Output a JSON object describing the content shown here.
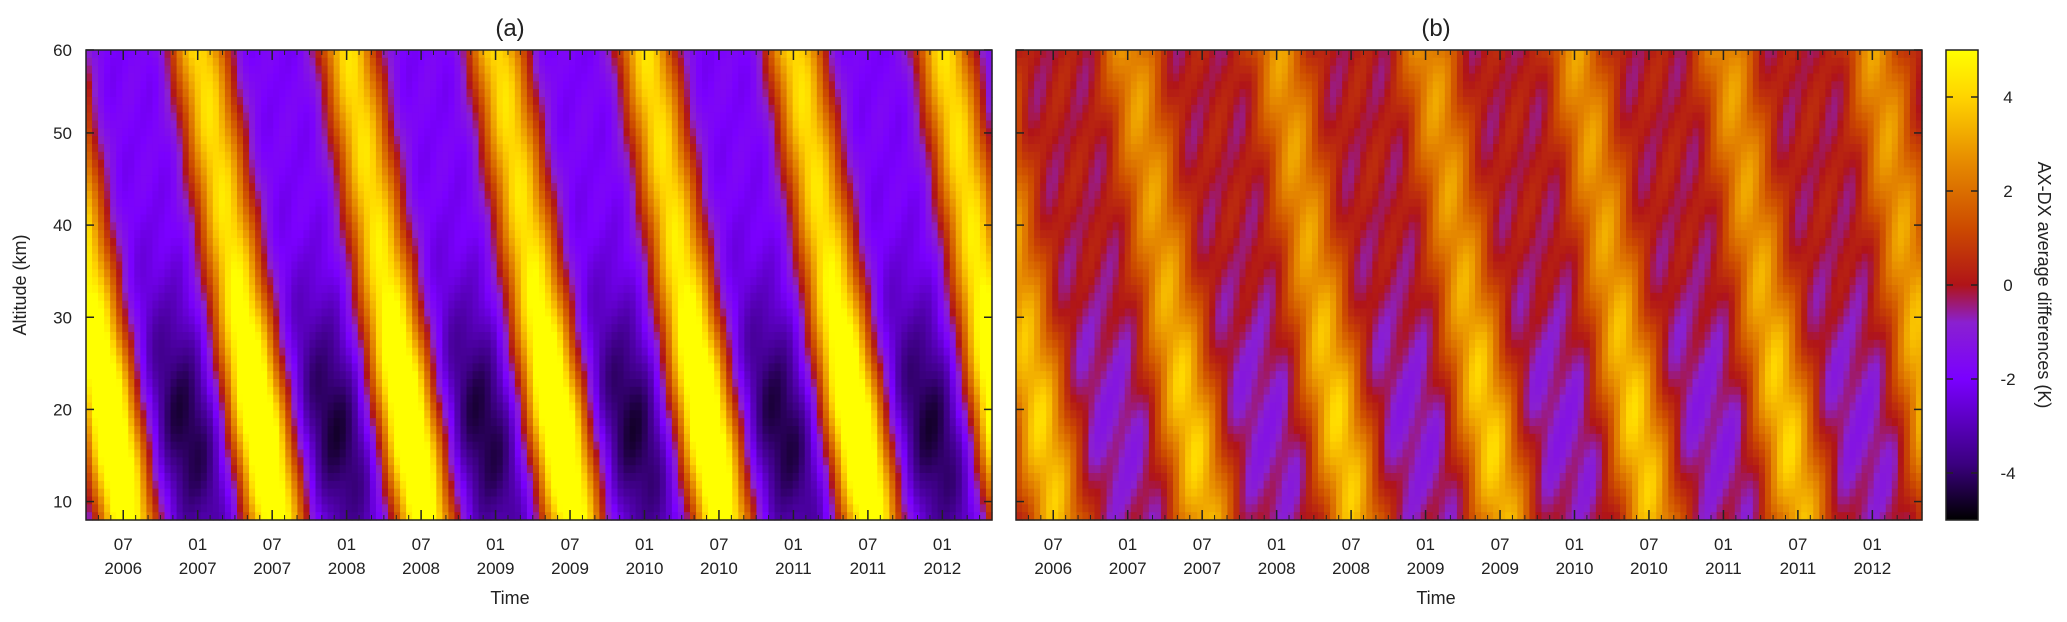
{
  "chart_data": [
    {
      "type": "heatmap",
      "title": "(a)",
      "xlabel": "Time",
      "ylabel": "Altitude (km)",
      "xlim": [
        "2006-04-01",
        "2012-05-01"
      ],
      "ylim": [
        8,
        59
      ],
      "y_ticks": [
        "10",
        "20",
        "30",
        "40",
        "50",
        "60"
      ],
      "x_ticks": [
        {
          "month": "07",
          "year": "2006"
        },
        {
          "month": "01",
          "year": "2007"
        },
        {
          "month": "07",
          "year": "2007"
        },
        {
          "month": "01",
          "year": "2008"
        },
        {
          "month": "07",
          "year": "2008"
        },
        {
          "month": "01",
          "year": "2009"
        },
        {
          "month": "07",
          "year": "2009"
        },
        {
          "month": "01",
          "year": "2010"
        },
        {
          "month": "07",
          "year": "2010"
        },
        {
          "month": "01",
          "year": "2011"
        },
        {
          "month": "07",
          "year": "2011"
        },
        {
          "month": "01",
          "year": "2012"
        }
      ],
      "pattern": {
        "annual_amplitude": 5.6,
        "semiannual_amplitude": 1.0,
        "phase_tilt_months_per_km": 0.12,
        "peak_month_at_10km": 7,
        "warm_bias": 0.2
      }
    },
    {
      "type": "heatmap",
      "title": "(b)",
      "xlabel": "Time",
      "ylabel": "",
      "xlim": [
        "2006-04-01",
        "2012-05-01"
      ],
      "ylim": [
        8,
        59
      ],
      "y_ticks": [
        "10",
        "20",
        "30",
        "40",
        "50",
        "60"
      ],
      "x_ticks": [
        {
          "month": "07",
          "year": "2006"
        },
        {
          "month": "01",
          "year": "2007"
        },
        {
          "month": "07",
          "year": "2007"
        },
        {
          "month": "01",
          "year": "2008"
        },
        {
          "month": "07",
          "year": "2008"
        },
        {
          "month": "01",
          "year": "2009"
        },
        {
          "month": "07",
          "year": "2009"
        },
        {
          "month": "01",
          "year": "2010"
        },
        {
          "month": "07",
          "year": "2010"
        },
        {
          "month": "01",
          "year": "2011"
        },
        {
          "month": "07",
          "year": "2011"
        },
        {
          "month": "01",
          "year": "2012"
        }
      ],
      "pattern": {
        "annual_amplitude": 2.4,
        "semiannual_amplitude": 0.6,
        "phase_tilt_months_per_km": 0.12,
        "peak_month_at_10km": 7,
        "warm_bias": 0.9
      }
    }
  ],
  "colorbar": {
    "label": "AX-DX average differences (K)",
    "range": [
      -5,
      5
    ],
    "ticks": [
      "4",
      "2",
      "0",
      "-2",
      "-4"
    ],
    "tick_values": [
      4,
      2,
      0,
      -2,
      -4
    ],
    "colormap": [
      "#000000",
      "#3b0080",
      "#7a00ff",
      "#8a20d0",
      "#b01418",
      "#cc4a00",
      "#e68a00",
      "#ffd400",
      "#ffff00"
    ]
  }
}
